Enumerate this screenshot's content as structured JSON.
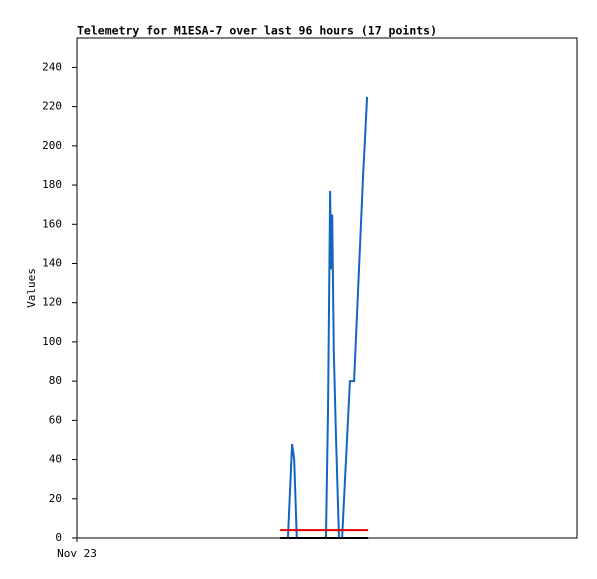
{
  "chart_data": {
    "type": "line",
    "title": "Telemetry for M1ESA-7 over last 96 hours (17 points)",
    "y_label": "Values",
    "xlim": [
      0,
      96
    ],
    "xticks": [
      {
        "value": 0,
        "label": "Nov 23"
      }
    ],
    "ylim": [
      0,
      255
    ],
    "yticks": [
      0,
      20,
      40,
      60,
      80,
      100,
      120,
      140,
      160,
      180,
      200,
      220,
      240
    ],
    "grid": false,
    "series": [
      {
        "color": "#1565c0",
        "x": [
          40.5,
          41.3,
          41.7,
          42.2,
          47.8,
          48.2,
          48.6,
          48.8,
          49.0,
          49.3,
          49.7,
          50.3,
          50.9,
          52.4,
          53.2,
          54.9,
          55.7
        ],
        "values": [
          0,
          48,
          40,
          0,
          0,
          66,
          177,
          137,
          165,
          96,
          54,
          0,
          0,
          80,
          80,
          183,
          225
        ]
      },
      {
        "color": "#e00000",
        "x": [
          39.0,
          55.9
        ],
        "values": [
          4,
          4
        ]
      },
      {
        "color": "#000000",
        "x": [
          39.0,
          55.9
        ],
        "values": [
          0,
          0
        ]
      }
    ]
  }
}
